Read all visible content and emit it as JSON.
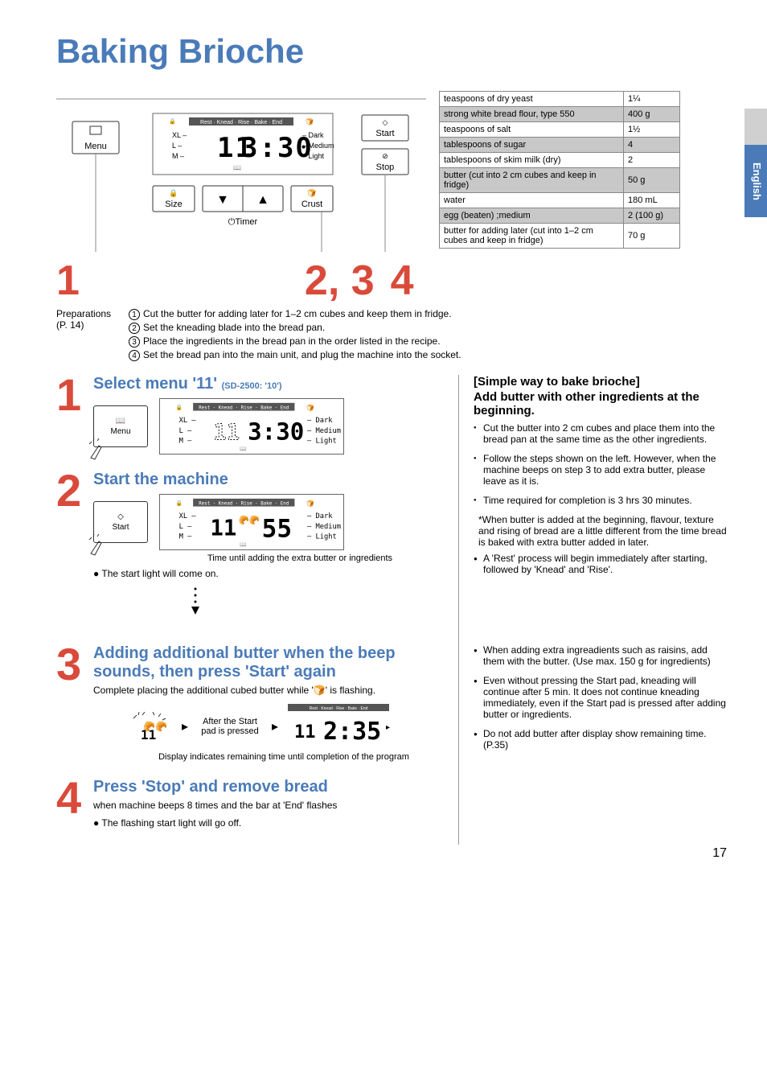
{
  "page": {
    "title": "Baking Brioche",
    "side_tab": "English",
    "page_number": "17"
  },
  "panel": {
    "status_bar": "Rest · Knead · Rise · Bake · End",
    "sizes": [
      "XL",
      "L",
      "M"
    ],
    "crust": [
      "Dark",
      "Medium",
      "Light"
    ],
    "menu_btn": "Menu",
    "start_btn": "Start",
    "stop_btn": "Stop",
    "size_btn": "Size",
    "crust_btn": "Crust",
    "timer_btn": "Timer",
    "main_display": "3:30",
    "menu_num": "11"
  },
  "ingredients": [
    {
      "name": "teaspoons of dry yeast",
      "amt": "1¼",
      "hl": false
    },
    {
      "name": "strong white bread flour, type 550",
      "amt": "400 g",
      "hl": true
    },
    {
      "name": "teaspoons of salt",
      "amt": "1½",
      "hl": false
    },
    {
      "name": "tablespoons of sugar",
      "amt": "4",
      "hl": true
    },
    {
      "name": "tablespoons of skim milk (dry)",
      "amt": "2",
      "hl": false
    },
    {
      "name": "butter (cut into 2 cm cubes and keep in fridge)",
      "amt": "50 g",
      "hl": true
    },
    {
      "name": "water",
      "amt": "180 mL",
      "hl": false
    },
    {
      "name": "egg (beaten) ;medium",
      "amt": "2 (100 g)",
      "hl": true
    },
    {
      "name": "butter for adding later (cut into 1–2 cm cubes and keep in fridge)",
      "amt": "70 g",
      "hl": false
    }
  ],
  "overview_nums": {
    "n1": "1",
    "n23": "2, 3",
    "n4": "4"
  },
  "preparations": {
    "label": "Preparations",
    "ref": "(P. 14)",
    "steps": [
      "Cut the butter for adding later for 1–2 cm cubes and keep them in fridge.",
      "Set the kneading blade into the bread pan.",
      "Place the ingredients in the bread pan in the order listed in the recipe.",
      "Set the bread pan into the main unit, and plug the machine into the socket."
    ]
  },
  "steps": {
    "s1": {
      "num": "1",
      "title": "Select menu '11'",
      "sub": "(SD-2500: '10')",
      "menu": "11",
      "time": "3:30"
    },
    "s2": {
      "num": "2",
      "title": "Start the machine",
      "menu": "11",
      "time": "55",
      "caption": "Time until adding the extra butter or ingredients",
      "note": "The start light will come on."
    },
    "s3": {
      "num": "3",
      "title": "Adding additional butter when the beep sounds, then press 'Start' again",
      "text": "Complete placing the additional cubed butter while '🍞' is flashing.",
      "after_text": "After the Start pad is pressed",
      "time": "2:35",
      "menu": "11",
      "caption": "Display indicates remaining time until completion of the program"
    },
    "s4": {
      "num": "4",
      "title": "Press 'Stop' and remove bread",
      "text": "when machine beeps 8 times and the bar at 'End' flashes",
      "note": "The flashing start light will go off."
    }
  },
  "right": {
    "h1": "[Simple way to bake brioche]",
    "h2": "Add butter with other ingredients at the beginning.",
    "bullets1": [
      "Cut the butter into 2 cm cubes and place them into the bread pan at the same time as the other ingredients.",
      "Follow the steps shown on the left. However, when the machine beeps on step 3 to add extra butter, please leave as it is.",
      "Time required for completion is 3 hrs 30 minutes."
    ],
    "note": "*When butter is added at the beginning, flavour, texture and rising of bread are a little different from the time bread is baked with extra butter added in later.",
    "bullets2": [
      "A 'Rest' process will begin immediately after starting, followed by 'Knead' and 'Rise'."
    ],
    "bullets3": [
      "When adding extra ingreadients such as raisins, add them with the butter. (Use max. 150 g for ingredients)",
      "Even without pressing the Start pad, kneading will continue after 5 min. It does not continue kneading immediately, even if the Start pad is pressed after adding butter or ingredients.",
      "Do not add butter after display show remaining time. (P.35)"
    ]
  },
  "colors": {
    "red": "#d94a3a",
    "blue": "#4a7bb8",
    "grey": "#c8c8c8"
  }
}
